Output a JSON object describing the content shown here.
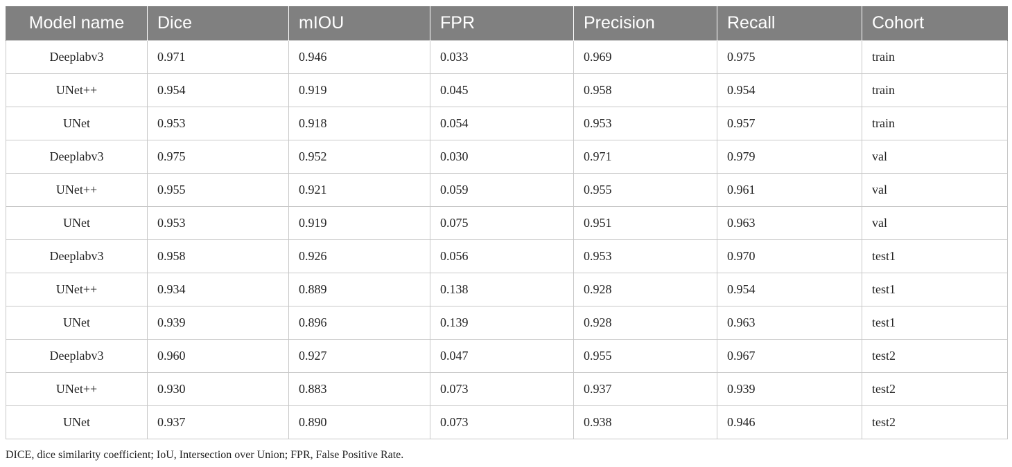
{
  "table": {
    "headers": [
      "Model name",
      "Dice",
      "mIOU",
      "FPR",
      "Precision",
      "Recall",
      "Cohort"
    ],
    "rows": [
      [
        "Deeplabv3",
        "0.971",
        "0.946",
        "0.033",
        "0.969",
        "0.975",
        "train"
      ],
      [
        "UNet++",
        "0.954",
        "0.919",
        "0.045",
        "0.958",
        "0.954",
        "train"
      ],
      [
        "UNet",
        "0.953",
        "0.918",
        "0.054",
        "0.953",
        "0.957",
        "train"
      ],
      [
        "Deeplabv3",
        "0.975",
        "0.952",
        "0.030",
        "0.971",
        "0.979",
        "val"
      ],
      [
        "UNet++",
        "0.955",
        "0.921",
        "0.059",
        "0.955",
        "0.961",
        "val"
      ],
      [
        "UNet",
        "0.953",
        "0.919",
        "0.075",
        "0.951",
        "0.963",
        "val"
      ],
      [
        "Deeplabv3",
        "0.958",
        "0.926",
        "0.056",
        "0.953",
        "0.970",
        "test1"
      ],
      [
        "UNet++",
        "0.934",
        "0.889",
        "0.138",
        "0.928",
        "0.954",
        "test1"
      ],
      [
        "UNet",
        "0.939",
        "0.896",
        "0.139",
        "0.928",
        "0.963",
        "test1"
      ],
      [
        "Deeplabv3",
        "0.960",
        "0.927",
        "0.047",
        "0.955",
        "0.967",
        "test2"
      ],
      [
        "UNet++",
        "0.930",
        "0.883",
        "0.073",
        "0.937",
        "0.939",
        "test2"
      ],
      [
        "UNet",
        "0.937",
        "0.890",
        "0.073",
        "0.938",
        "0.946",
        "test2"
      ]
    ]
  },
  "footnote": "DICE, dice similarity coefficient; IoU, Intersection over Union; FPR, False Positive Rate.",
  "colors": {
    "header_bg": "#808080",
    "header_text": "#ffffff",
    "grid": "#c8c8c8"
  }
}
